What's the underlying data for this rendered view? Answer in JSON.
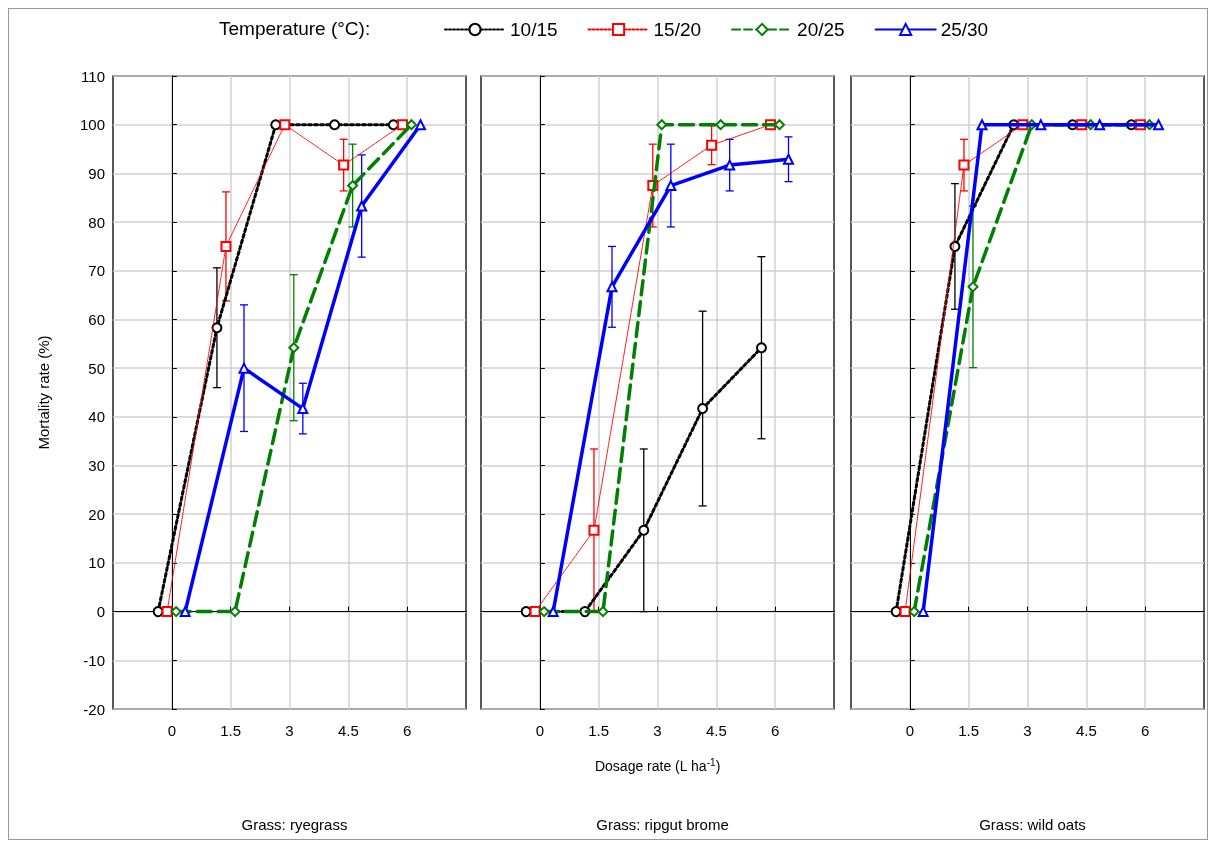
{
  "chart_data": [
    {
      "type": "line",
      "title": "Grass: ryegrass",
      "ylabel": "Mortality rate (%)",
      "legend": "top",
      "legend_title": "Temperature (°C):",
      "xlim": [
        -1.5,
        7.5
      ],
      "xticks": [
        0,
        1.5,
        3,
        4.5,
        6
      ],
      "ylim": [
        -20,
        110
      ],
      "yticks": [
        -20,
        -10,
        0,
        10,
        20,
        30,
        40,
        50,
        60,
        70,
        80,
        90,
        100,
        110
      ],
      "grid": true,
      "series": [
        {
          "name": "10/15",
          "color": "#000000",
          "marker": "circle",
          "line_style": "dotted",
          "x": [
            -0.35,
            1.15,
            2.65,
            4.15,
            5.65
          ],
          "values": [
            0,
            58.3,
            100,
            100,
            100
          ],
          "errors": [
            null,
            12.3,
            null,
            null,
            null
          ]
        },
        {
          "name": "15/20",
          "color": "#ff0000",
          "marker": "square",
          "line_style": "dotted",
          "x": [
            -0.12,
            1.38,
            2.88,
            4.38,
            5.88
          ],
          "values": [
            0,
            75,
            100,
            91.7,
            100
          ],
          "errors": [
            null,
            11.2,
            null,
            5.3,
            null
          ]
        },
        {
          "name": "20/25",
          "color": "#008000",
          "marker": "diamond",
          "line_style": "dashed",
          "x": [
            0.11,
            1.61,
            3.11,
            4.61,
            6.11
          ],
          "values": [
            0,
            0,
            54.2,
            87.5,
            100
          ],
          "errors": [
            null,
            null,
            15,
            8.5,
            null
          ]
        },
        {
          "name": "25/30",
          "color": "#0000ff",
          "marker": "triangle",
          "line_style": "solid",
          "x": [
            0.34,
            1.84,
            3.34,
            4.84,
            6.34
          ],
          "values": [
            0,
            50,
            41.7,
            83.3,
            100
          ],
          "errors": [
            null,
            13,
            5.2,
            10.5,
            null
          ]
        }
      ]
    },
    {
      "type": "line",
      "title": "Grass: ripgut brome",
      "xlabel": "Dosage rate (L ha$^{-1}$)",
      "tick_labels": "x",
      "xlim": [
        -1.5,
        7.5
      ],
      "xticks": [
        0,
        1.5,
        3,
        4.5,
        6
      ],
      "ylim": [
        -20,
        110
      ],
      "yticks": [
        -20,
        -10,
        0,
        10,
        20,
        30,
        40,
        50,
        60,
        70,
        80,
        90,
        100,
        110
      ],
      "grid": true,
      "series": [
        {
          "color": "#000000",
          "marker": "circle",
          "line_style": "dotted",
          "x": [
            -0.35,
            1.15,
            2.65,
            4.15,
            5.65
          ],
          "values": [
            0,
            0,
            16.7,
            41.7,
            54.2
          ],
          "errors": [
            null,
            null,
            16.7,
            20,
            18.7
          ]
        },
        {
          "color": "#ff0000",
          "marker": "square",
          "line_style": "dotted",
          "x": [
            -0.12,
            1.38,
            2.88,
            4.38,
            5.88
          ],
          "values": [
            0,
            16.7,
            87.5,
            95.8,
            100
          ],
          "errors": [
            null,
            16.7,
            8.5,
            4,
            null
          ]
        },
        {
          "color": "#008000",
          "marker": "diamond",
          "line_style": "dashed",
          "x": [
            0.11,
            1.61,
            3.11,
            4.61,
            6.11
          ],
          "values": [
            0,
            0,
            100,
            100,
            100
          ],
          "errors": [
            null,
            null,
            null,
            null,
            null
          ]
        },
        {
          "color": "#0000ff",
          "marker": "triangle",
          "line_style": "solid",
          "x": [
            0.34,
            1.84,
            3.34,
            4.84,
            6.34
          ],
          "values": [
            0,
            66.7,
            87.5,
            91.7,
            92.9
          ],
          "errors": [
            null,
            8.3,
            8.5,
            5.3,
            4.6
          ]
        }
      ]
    },
    {
      "type": "line",
      "title": "Grass: wild oats",
      "tick_labels": "x",
      "xlim": [
        -1.5,
        7.5
      ],
      "xticks": [
        0,
        1.5,
        3,
        4.5,
        6
      ],
      "ylim": [
        -20,
        110
      ],
      "yticks": [
        -20,
        -10,
        0,
        10,
        20,
        30,
        40,
        50,
        60,
        70,
        80,
        90,
        100,
        110
      ],
      "grid": true,
      "series": [
        {
          "color": "#000000",
          "marker": "circle",
          "line_style": "dotted",
          "x": [
            -0.35,
            1.15,
            2.65,
            4.15,
            5.65
          ],
          "values": [
            0,
            75,
            100,
            100,
            100
          ],
          "errors": [
            null,
            12.9,
            null,
            null,
            null
          ]
        },
        {
          "color": "#ff0000",
          "marker": "square",
          "line_style": "dotted",
          "x": [
            -0.12,
            1.38,
            2.88,
            4.38,
            5.88
          ],
          "values": [
            0,
            91.7,
            100,
            100,
            100
          ],
          "errors": [
            null,
            5.3,
            null,
            null,
            null
          ]
        },
        {
          "color": "#008000",
          "marker": "diamond",
          "line_style": "dashed",
          "x": [
            0.11,
            1.61,
            3.11,
            4.61,
            6.11
          ],
          "values": [
            0,
            66.7,
            100,
            100,
            100
          ],
          "errors": [
            null,
            16.6,
            null,
            null,
            null
          ]
        },
        {
          "color": "#0000ff",
          "marker": "triangle",
          "line_style": "solid",
          "x": [
            0.34,
            1.84,
            3.34,
            4.84,
            6.34
          ],
          "values": [
            0,
            100,
            100,
            100,
            100
          ],
          "errors": [
            null,
            null,
            null,
            null,
            null
          ]
        }
      ]
    }
  ]
}
